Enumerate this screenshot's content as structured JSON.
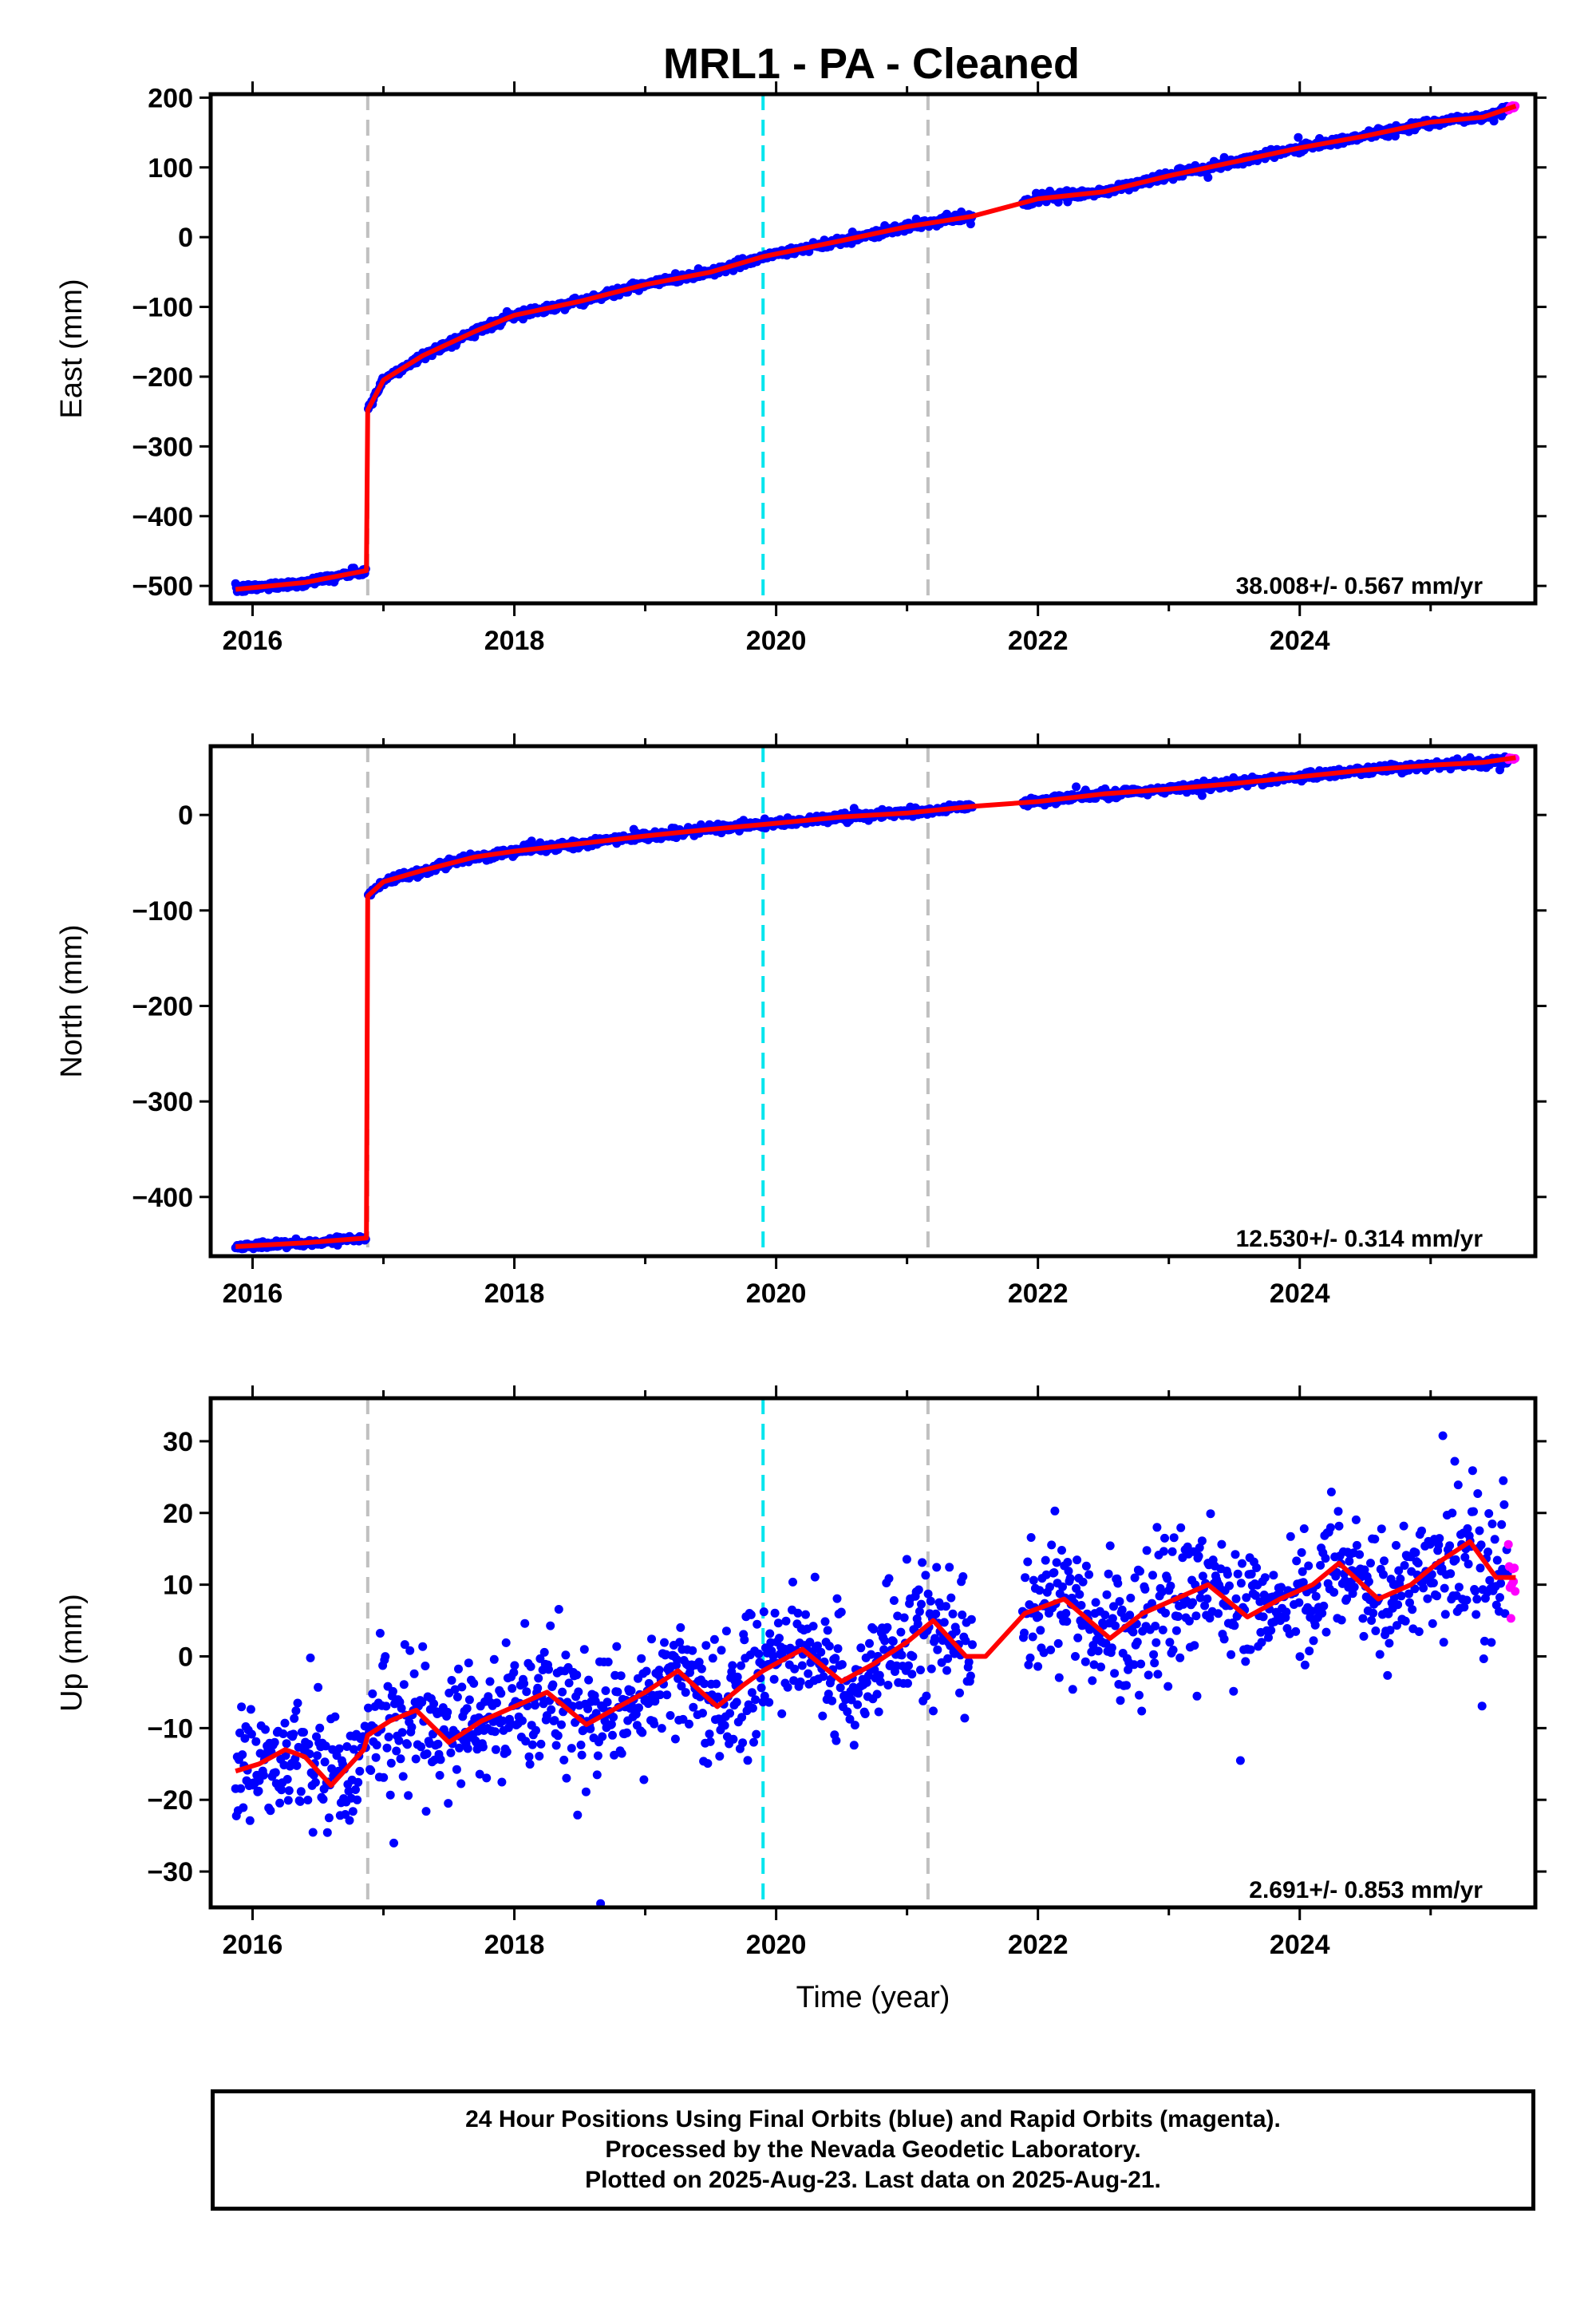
{
  "chart_data": {
    "title": "MRL1  - PA - Cleaned",
    "type": "scatter",
    "xlabel": "Time (year)",
    "x_ticks": [
      "2016",
      "2018",
      "2020",
      "2022",
      "2024"
    ],
    "xlim": [
      2015.68,
      2025.8
    ],
    "colors": {
      "final_orbits": "#0000ff",
      "rapid_orbits": "#ff00ff",
      "model": "#ff0000",
      "equipment_change": "#c0c0c0",
      "earthquake": "#00e5ee"
    },
    "vertical_lines": [
      {
        "type": "equipment_change",
        "x": 2016.88
      },
      {
        "type": "earthquake",
        "x": 2019.9
      },
      {
        "type": "equipment_change",
        "x": 2021.16
      }
    ],
    "data_gap": [
      2021.5,
      2021.88
    ],
    "panels": [
      {
        "ylabel": "East (mm)",
        "ylim": [
          -525,
          205
        ],
        "y_ticks": [
          200,
          100,
          0,
          -100,
          -200,
          -300,
          -400,
          -500
        ],
        "rate": "38.008+/- 0.567 mm/yr",
        "noise": 3,
        "model": [
          [
            2015.87,
            -505
          ],
          [
            2016.4,
            -495
          ],
          [
            2016.87,
            -478
          ],
          [
            2016.88,
            -248
          ],
          [
            2017.0,
            -205
          ],
          [
            2017.3,
            -170
          ],
          [
            2017.7,
            -135
          ],
          [
            2018.0,
            -112
          ],
          [
            2018.5,
            -92
          ],
          [
            2019.0,
            -68
          ],
          [
            2019.5,
            -50
          ],
          [
            2019.9,
            -28
          ],
          [
            2020.5,
            -5
          ],
          [
            2021.0,
            15
          ],
          [
            2021.5,
            30
          ],
          [
            2022.0,
            55
          ],
          [
            2022.5,
            65
          ],
          [
            2023.0,
            88
          ],
          [
            2023.5,
            108
          ],
          [
            2024.0,
            128
          ],
          [
            2024.5,
            145
          ],
          [
            2025.0,
            165
          ],
          [
            2025.4,
            172
          ],
          [
            2025.65,
            188
          ]
        ]
      },
      {
        "ylabel": "North (mm)",
        "ylim": [
          -462,
          72
        ],
        "y_ticks": [
          0,
          -100,
          -200,
          -300,
          -400
        ],
        "rate": "12.530+/- 0.314 mm/yr",
        "noise": 2.2,
        "model": [
          [
            2015.87,
            -452
          ],
          [
            2016.4,
            -448
          ],
          [
            2016.87,
            -443
          ],
          [
            2016.88,
            -85
          ],
          [
            2017.0,
            -70
          ],
          [
            2017.3,
            -58
          ],
          [
            2017.7,
            -44
          ],
          [
            2018.0,
            -38
          ],
          [
            2018.5,
            -30
          ],
          [
            2019.0,
            -22
          ],
          [
            2019.5,
            -15
          ],
          [
            2019.9,
            -10
          ],
          [
            2020.5,
            -2
          ],
          [
            2021.0,
            2
          ],
          [
            2021.5,
            9
          ],
          [
            2022.0,
            14
          ],
          [
            2022.5,
            22
          ],
          [
            2023.0,
            27
          ],
          [
            2023.5,
            33
          ],
          [
            2024.0,
            40
          ],
          [
            2024.5,
            47
          ],
          [
            2025.0,
            52
          ],
          [
            2025.4,
            55
          ],
          [
            2025.65,
            60
          ]
        ]
      },
      {
        "ylabel": "Up (mm)",
        "ylim": [
          -35,
          36
        ],
        "y_ticks": [
          30,
          20,
          10,
          0,
          -10,
          -20,
          -30
        ],
        "rate": "2.691+/- 0.853 mm/yr",
        "noise": 4.5,
        "model": [
          [
            2015.87,
            -16
          ],
          [
            2016.05,
            -15
          ],
          [
            2016.25,
            -13
          ],
          [
            2016.4,
            -14
          ],
          [
            2016.6,
            -18
          ],
          [
            2016.85,
            -13
          ],
          [
            2016.88,
            -11
          ],
          [
            2017.05,
            -9
          ],
          [
            2017.25,
            -7.5
          ],
          [
            2017.5,
            -12
          ],
          [
            2017.75,
            -9
          ],
          [
            2018.0,
            -7
          ],
          [
            2018.25,
            -5
          ],
          [
            2018.55,
            -9.5
          ],
          [
            2018.8,
            -7
          ],
          [
            2019.0,
            -5
          ],
          [
            2019.25,
            -2
          ],
          [
            2019.55,
            -7
          ],
          [
            2019.75,
            -4
          ],
          [
            2019.9,
            -2
          ],
          [
            2020.2,
            1
          ],
          [
            2020.5,
            -3.5
          ],
          [
            2020.75,
            -1
          ],
          [
            2021.0,
            2
          ],
          [
            2021.2,
            5
          ],
          [
            2021.45,
            0
          ],
          [
            2021.6,
            0
          ],
          [
            2021.9,
            6
          ],
          [
            2022.2,
            8
          ],
          [
            2022.55,
            2.5
          ],
          [
            2022.8,
            6
          ],
          [
            2023.05,
            8
          ],
          [
            2023.3,
            10
          ],
          [
            2023.6,
            5.5
          ],
          [
            2023.85,
            8
          ],
          [
            2024.1,
            10
          ],
          [
            2024.3,
            13
          ],
          [
            2024.6,
            8
          ],
          [
            2024.85,
            10
          ],
          [
            2025.05,
            13
          ],
          [
            2025.3,
            16
          ],
          [
            2025.5,
            11
          ],
          [
            2025.65,
            11
          ]
        ]
      }
    ]
  },
  "footer": {
    "line1": "24 Hour Positions Using Final Orbits (blue) and Rapid Orbits (magenta).",
    "line2": "Processed by the Nevada Geodetic Laboratory.",
    "line3": "Plotted on 2025-Aug-23. Last data on 2025-Aug-21."
  }
}
